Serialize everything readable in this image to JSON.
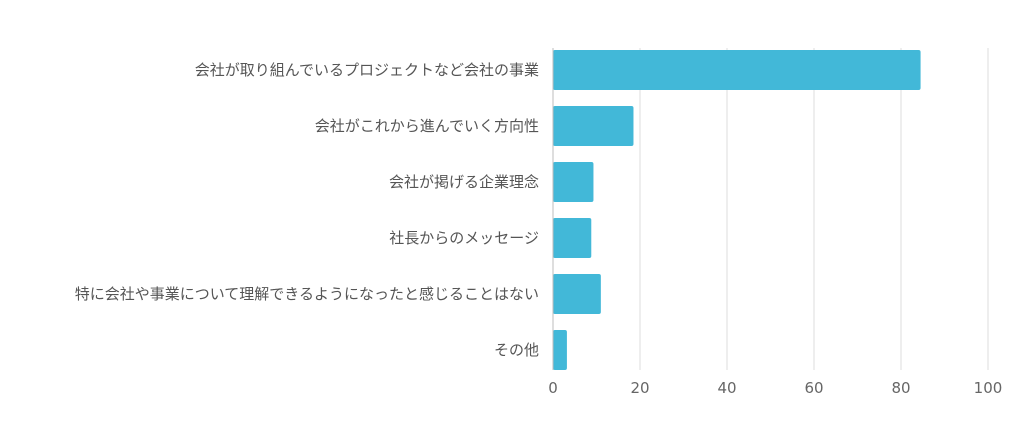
{
  "chart_data": {
    "type": "bar",
    "orientation": "horizontal",
    "categories": [
      "会社が取り組んでいるプロジェクトなど会社の事業",
      "会社がこれから進んでいく方向性",
      "会社が掲げる企業理念",
      "社長からのメッセージ",
      "特に会社や事業について理解できるようになったと感じることはない",
      "その他"
    ],
    "values": [
      84.5,
      18.5,
      9.3,
      8.8,
      11,
      3.2
    ],
    "xlim": [
      0,
      100
    ],
    "xticks": [
      "0",
      "20",
      "40",
      "60",
      "80",
      "100"
    ],
    "grid": true,
    "bar_color": "#42b8d8",
    "title": "",
    "xlabel": "",
    "ylabel": ""
  }
}
